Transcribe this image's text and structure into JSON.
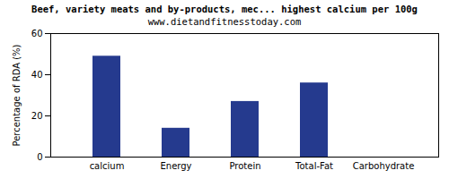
{
  "chart_data": {
    "type": "bar",
    "title": "Beef, variety meats and by-products, mec... highest calcium per 100g",
    "subtitle": "www.dietandfitnesstoday.com",
    "y_label": "Percentage of RDA (%)",
    "categories": [
      "calcium",
      "Energy",
      "Protein",
      "Total-Fat",
      "Carbohydrate"
    ],
    "values": [
      49,
      14,
      27,
      36,
      0
    ],
    "color": "#253a8e",
    "ylim": [
      0,
      60
    ],
    "yticks": [
      0,
      20,
      40,
      60
    ],
    "grid": false
  }
}
